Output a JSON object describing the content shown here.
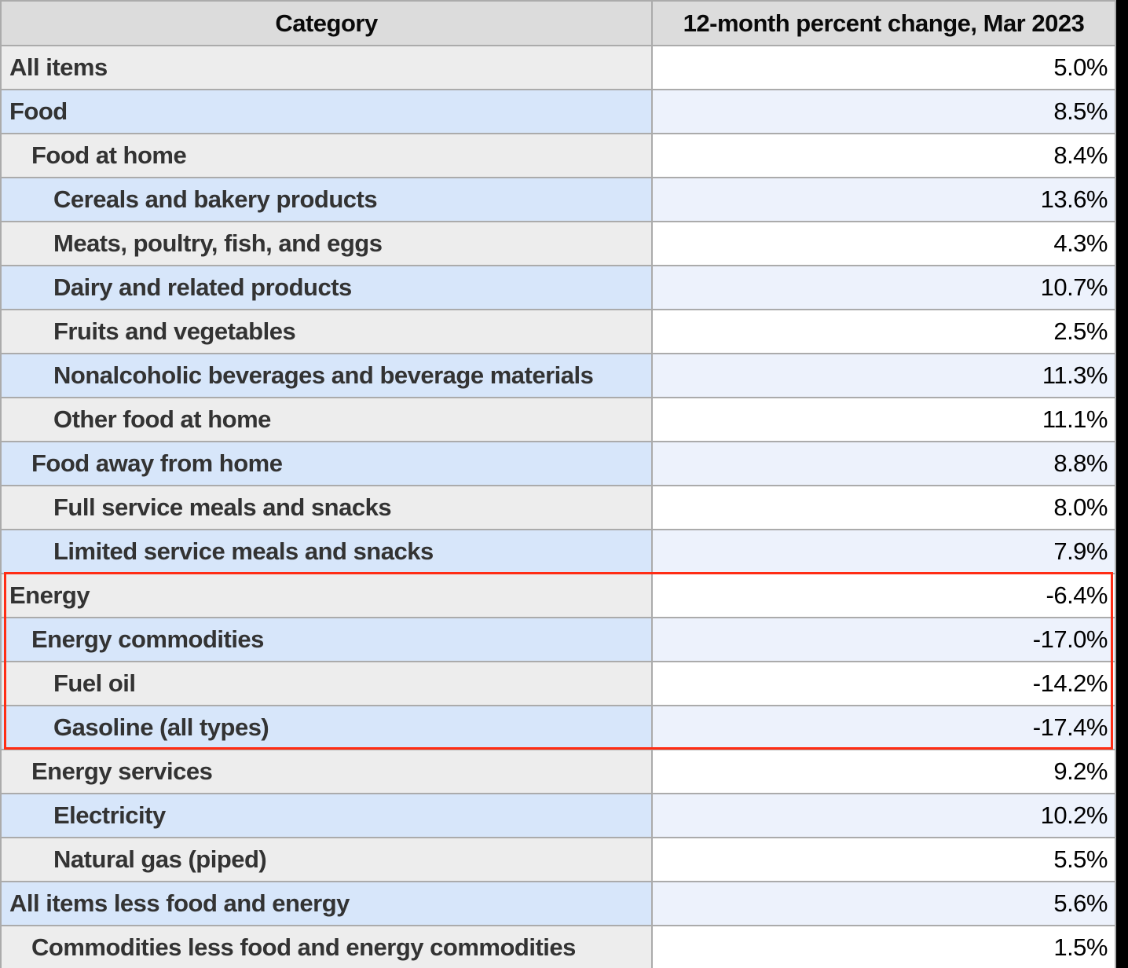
{
  "table": {
    "header": {
      "category_label": "Category",
      "value_label": "12-month percent change, Mar 2023"
    },
    "rows": [
      {
        "label": "All items",
        "value": "5.0%",
        "indent": 0
      },
      {
        "label": "Food",
        "value": "8.5%",
        "indent": 0
      },
      {
        "label": "Food at home",
        "value": "8.4%",
        "indent": 1
      },
      {
        "label": "Cereals and bakery products",
        "value": "13.6%",
        "indent": 2
      },
      {
        "label": "Meats, poultry, fish, and eggs",
        "value": "4.3%",
        "indent": 2
      },
      {
        "label": "Dairy and related products",
        "value": "10.7%",
        "indent": 2
      },
      {
        "label": "Fruits and vegetables",
        "value": "2.5%",
        "indent": 2
      },
      {
        "label": "Nonalcoholic beverages and beverage materials",
        "value": "11.3%",
        "indent": 2
      },
      {
        "label": "Other food at home",
        "value": "11.1%",
        "indent": 2
      },
      {
        "label": "Food away from home",
        "value": "8.8%",
        "indent": 1
      },
      {
        "label": "Full service meals and snacks",
        "value": "8.0%",
        "indent": 2
      },
      {
        "label": "Limited service meals and snacks",
        "value": "7.9%",
        "indent": 2
      },
      {
        "label": "Energy",
        "value": "-6.4%",
        "indent": 0
      },
      {
        "label": "Energy commodities",
        "value": "-17.0%",
        "indent": 1
      },
      {
        "label": "Fuel oil",
        "value": "-14.2%",
        "indent": 2
      },
      {
        "label": "Gasoline (all types)",
        "value": "-17.4%",
        "indent": 2
      },
      {
        "label": "Energy services",
        "value": "9.2%",
        "indent": 1
      },
      {
        "label": "Electricity",
        "value": "10.2%",
        "indent": 2
      },
      {
        "label": "Natural gas (piped)",
        "value": "5.5%",
        "indent": 2
      },
      {
        "label": "All items less food and energy",
        "value": "5.6%",
        "indent": 0
      },
      {
        "label": "Commodities less food and energy commodities",
        "value": "1.5%",
        "indent": 1
      }
    ]
  },
  "highlight_box": {
    "color": "#ff2d15",
    "first_row": "Energy",
    "last_row": "Gasoline (all types)"
  },
  "colors": {
    "header_bg": "#dcdcdc",
    "row_gray_category": "#ededed",
    "row_gray_value": "#ffffff",
    "row_blue_category": "#d7e6fa",
    "row_blue_value": "#edf2fc",
    "grid_border": "#ababab",
    "category_text": "#333333",
    "value_text": "#000000",
    "highlight_red": "#ff2d15"
  },
  "chart_data": {
    "type": "table",
    "title": "",
    "columns": [
      "Category",
      "12-month percent change, Mar 2023"
    ],
    "unit": "percent",
    "rows": [
      {
        "category": "All items",
        "indent": 0,
        "value": 5.0
      },
      {
        "category": "Food",
        "indent": 0,
        "value": 8.5
      },
      {
        "category": "Food at home",
        "indent": 1,
        "value": 8.4
      },
      {
        "category": "Cereals and bakery products",
        "indent": 2,
        "value": 13.6
      },
      {
        "category": "Meats, poultry, fish, and eggs",
        "indent": 2,
        "value": 4.3
      },
      {
        "category": "Dairy and related products",
        "indent": 2,
        "value": 10.7
      },
      {
        "category": "Fruits and vegetables",
        "indent": 2,
        "value": 2.5
      },
      {
        "category": "Nonalcoholic beverages and beverage materials",
        "indent": 2,
        "value": 11.3
      },
      {
        "category": "Other food at home",
        "indent": 2,
        "value": 11.1
      },
      {
        "category": "Food away from home",
        "indent": 1,
        "value": 8.8
      },
      {
        "category": "Full service meals and snacks",
        "indent": 2,
        "value": 8.0
      },
      {
        "category": "Limited service meals and snacks",
        "indent": 2,
        "value": 7.9
      },
      {
        "category": "Energy",
        "indent": 0,
        "value": -6.4
      },
      {
        "category": "Energy commodities",
        "indent": 1,
        "value": -17.0
      },
      {
        "category": "Fuel oil",
        "indent": 2,
        "value": -14.2
      },
      {
        "category": "Gasoline (all types)",
        "indent": 2,
        "value": -17.4
      },
      {
        "category": "Energy services",
        "indent": 1,
        "value": 9.2
      },
      {
        "category": "Electricity",
        "indent": 2,
        "value": 10.2
      },
      {
        "category": "Natural gas (piped)",
        "indent": 2,
        "value": 5.5
      },
      {
        "category": "All items less food and energy",
        "indent": 0,
        "value": 5.6
      },
      {
        "category": "Commodities less food and energy commodities",
        "indent": 1,
        "value": 1.5
      }
    ],
    "highlighted_rows": [
      "Energy",
      "Energy commodities",
      "Fuel oil",
      "Gasoline (all types)"
    ],
    "legend_position": "none",
    "grid": true
  }
}
